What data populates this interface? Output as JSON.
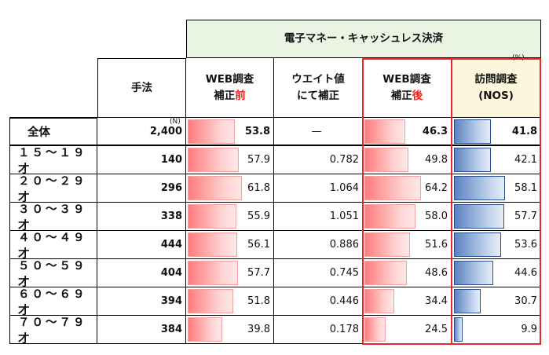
{
  "chart_data": {
    "type": "table",
    "group_header": "電子マネー・キャッシュレス決済",
    "row_header": "手法",
    "columns": [
      {
        "key": "web_pre",
        "label_lines": [
          "WEB調査",
          "補正前"
        ]
      },
      {
        "key": "weight",
        "label_lines": [
          "ウエイト値",
          "にて補正"
        ]
      },
      {
        "key": "web_post",
        "label_lines": [
          "WEB調査",
          "補正後"
        ]
      },
      {
        "key": "nos",
        "label_lines": [
          "訪問調査",
          "(NOS)"
        ]
      }
    ],
    "units": {
      "n": "(N)",
      "percent": "(%)"
    },
    "rows": [
      {
        "label": "全体",
        "n": "2,400",
        "web_pre": 53.8,
        "weight": "—",
        "web_post": 46.3,
        "nos": 41.8
      },
      {
        "label": "１５～１９才",
        "n": "140",
        "web_pre": 57.9,
        "weight": "0.782",
        "web_post": 49.8,
        "nos": 42.1
      },
      {
        "label": "２０～２９才",
        "n": "296",
        "web_pre": 61.8,
        "weight": "1.064",
        "web_post": 64.2,
        "nos": 58.1
      },
      {
        "label": "３０～３９才",
        "n": "338",
        "web_pre": 55.9,
        "weight": "1.051",
        "web_post": 58.0,
        "nos": 57.7
      },
      {
        "label": "４０～４９才",
        "n": "444",
        "web_pre": 56.1,
        "weight": "0.886",
        "web_post": 51.6,
        "nos": 53.6
      },
      {
        "label": "５０～５９才",
        "n": "404",
        "web_pre": 57.7,
        "weight": "0.745",
        "web_post": 48.6,
        "nos": 44.6
      },
      {
        "label": "６０～６９才",
        "n": "394",
        "web_pre": 51.8,
        "weight": "0.446",
        "web_post": 34.4,
        "nos": 30.7
      },
      {
        "label": "７０～７９才",
        "n": "384",
        "web_pre": 39.8,
        "weight": "0.178",
        "web_post": 24.5,
        "nos": 9.9
      }
    ],
    "bar_max": 100,
    "colors": {
      "bar_red": "#ff7b7b",
      "bar_blue": "#5b82c2",
      "highlight_border": "#e8262b",
      "accent_text": "#ff1a1a",
      "header_fill": "#eaf4e2",
      "nos_header_fill": "#fdf6dc"
    }
  }
}
